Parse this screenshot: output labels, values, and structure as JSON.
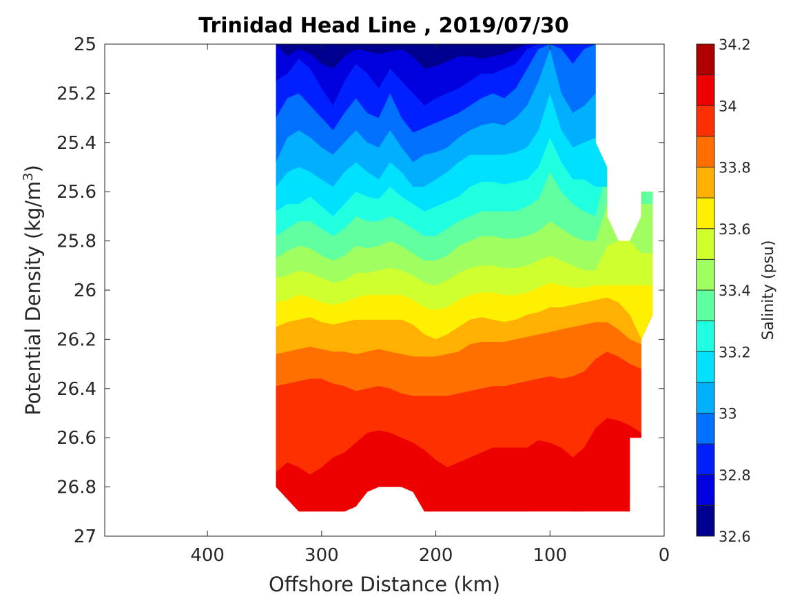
{
  "chart_data": {
    "type": "filled-contour",
    "title": "Trinidad Head Line , 2019/07/30",
    "xlabel": "Offshore Distance (km)",
    "ylabel_main": "Potential Density (kg/m",
    "ylabel_sup": "3",
    "ylabel_close": ")",
    "colorbar_label": "Salinity (psu)",
    "xlim": [
      490,
      0
    ],
    "ylim": [
      27,
      25
    ],
    "x_reversed": true,
    "y_reversed": true,
    "x_ticks": [
      400,
      300,
      200,
      100,
      0
    ],
    "x_tick_labels": [
      "400",
      "300",
      "200",
      "100",
      "0"
    ],
    "y_ticks": [
      25,
      25.2,
      25.4,
      25.6,
      25.8,
      26,
      26.2,
      26.4,
      26.6,
      26.8,
      27
    ],
    "y_tick_labels": [
      "25",
      "25.2",
      "25.4",
      "25.6",
      "25.8",
      "26",
      "26.2",
      "26.4",
      "26.6",
      "26.8",
      "27"
    ],
    "colorbar": {
      "range": [
        32.6,
        34.2
      ],
      "levels": [
        32.6,
        32.7,
        32.8,
        32.9,
        33.0,
        33.1,
        33.2,
        33.3,
        33.4,
        33.5,
        33.6,
        33.7,
        33.8,
        33.9,
        34.0,
        34.1,
        34.2
      ],
      "tick_values": [
        32.6,
        32.8,
        33.0,
        33.2,
        33.4,
        33.6,
        33.8,
        34.0,
        34.2
      ],
      "tick_labels": [
        "32.6",
        "32.8",
        "33",
        "33.2",
        "33.4",
        "33.6",
        "33.8",
        "34",
        "34.2"
      ],
      "colors": [
        "#00008f",
        "#0000df",
        "#0020ff",
        "#0070ff",
        "#00b0ff",
        "#00e0ff",
        "#20ffdf",
        "#60ff9f",
        "#9fff60",
        "#d0ff2f",
        "#ffef00",
        "#ffb000",
        "#ff7000",
        "#ff3000",
        "#ef0000",
        "#af0000"
      ]
    },
    "station_x_km": [
      340,
      330,
      320,
      310,
      300,
      290,
      280,
      270,
      260,
      250,
      240,
      230,
      220,
      210,
      200,
      190,
      180,
      170,
      160,
      150,
      140,
      130,
      120,
      110,
      100,
      90,
      80,
      70,
      60,
      50,
      40,
      30,
      20
    ],
    "bottom_density": [
      26.8,
      26.85,
      26.9,
      26.9,
      26.9,
      26.9,
      26.9,
      26.88,
      26.82,
      26.8,
      26.8,
      26.8,
      26.82,
      26.9,
      26.9,
      26.9,
      26.9,
      26.9,
      26.9,
      26.9,
      26.9,
      26.9,
      26.9,
      26.9,
      26.9,
      26.9,
      26.9,
      26.9,
      26.9,
      26.9,
      26.9,
      26.7,
      26.6
    ],
    "isohalines": [
      {
        "salinity": 32.7,
        "density": [
          25.0,
          25.05,
          25.02,
          25.04,
          25.08,
          25.1,
          25.05,
          25.02,
          25.03,
          25.04,
          25.03,
          25.02,
          25.05,
          25.1,
          25.09,
          25.07,
          25.05,
          25.05,
          25.06,
          25.05,
          25.04,
          25.02,
          25.0,
          25.0,
          25.0,
          25.0,
          25.0,
          25.0,
          25.0,
          null,
          null,
          null,
          null
        ]
      },
      {
        "salinity": 32.8,
        "density": [
          25.15,
          25.12,
          25.06,
          25.1,
          25.18,
          25.25,
          25.15,
          25.08,
          25.12,
          25.18,
          25.1,
          25.15,
          25.2,
          25.25,
          25.22,
          25.2,
          25.18,
          25.15,
          25.12,
          25.12,
          25.1,
          25.08,
          25.02,
          25.0,
          25.0,
          25.0,
          25.0,
          25.0,
          25.0,
          null,
          null,
          null,
          null
        ]
      },
      {
        "salinity": 32.9,
        "density": [
          25.3,
          25.22,
          25.2,
          25.25,
          25.3,
          25.35,
          25.28,
          25.22,
          25.28,
          25.3,
          25.2,
          25.3,
          25.36,
          25.34,
          25.32,
          25.3,
          25.28,
          25.25,
          25.22,
          25.2,
          25.22,
          25.18,
          25.1,
          25.02,
          25.0,
          25.02,
          25.08,
          25.02,
          25.0,
          null,
          null,
          null,
          null
        ]
      },
      {
        "salinity": 33.0,
        "density": [
          25.48,
          25.38,
          25.35,
          25.38,
          25.42,
          25.45,
          25.4,
          25.35,
          25.4,
          25.42,
          25.35,
          25.42,
          25.48,
          25.45,
          25.44,
          25.42,
          25.38,
          25.35,
          25.33,
          25.32,
          25.33,
          25.3,
          25.25,
          25.15,
          25.02,
          25.2,
          25.28,
          25.25,
          25.2,
          null,
          null,
          null,
          null
        ]
      },
      {
        "salinity": 33.1,
        "density": [
          25.58,
          25.52,
          25.5,
          25.52,
          25.55,
          25.58,
          25.52,
          25.48,
          25.52,
          25.55,
          25.48,
          25.52,
          25.58,
          25.58,
          25.55,
          25.52,
          25.48,
          25.45,
          25.45,
          25.45,
          25.45,
          25.44,
          25.42,
          25.35,
          25.2,
          25.35,
          25.42,
          25.4,
          25.38,
          null,
          null,
          null,
          null
        ]
      },
      {
        "salinity": 33.2,
        "density": [
          25.68,
          25.65,
          25.65,
          25.62,
          25.66,
          25.7,
          25.65,
          25.6,
          25.62,
          25.63,
          25.58,
          25.62,
          25.65,
          25.68,
          25.66,
          25.64,
          25.62,
          25.58,
          25.56,
          25.56,
          25.57,
          25.56,
          25.55,
          25.5,
          25.38,
          25.48,
          25.55,
          25.55,
          25.58,
          null,
          null,
          null,
          null
        ]
      },
      {
        "salinity": 33.3,
        "density": [
          25.78,
          25.75,
          25.72,
          25.72,
          25.75,
          25.78,
          25.75,
          25.7,
          25.72,
          25.72,
          25.7,
          25.72,
          25.75,
          25.78,
          25.78,
          25.75,
          25.72,
          25.7,
          25.68,
          25.68,
          25.68,
          25.68,
          25.66,
          25.63,
          25.52,
          25.6,
          25.65,
          25.68,
          25.7,
          25.5,
          null,
          null,
          null
        ]
      },
      {
        "salinity": 33.4,
        "density": [
          25.87,
          25.84,
          25.82,
          25.83,
          25.86,
          25.88,
          25.86,
          25.82,
          25.83,
          25.82,
          25.8,
          25.82,
          25.85,
          25.88,
          25.88,
          25.86,
          25.82,
          25.8,
          25.78,
          25.78,
          25.79,
          25.79,
          25.78,
          25.76,
          25.72,
          25.75,
          25.78,
          25.8,
          25.8,
          25.65,
          null,
          null,
          null
        ]
      },
      {
        "salinity": 33.5,
        "density": [
          25.95,
          25.94,
          25.92,
          25.93,
          25.95,
          25.97,
          25.96,
          25.93,
          25.93,
          25.92,
          25.91,
          25.92,
          25.94,
          25.97,
          25.98,
          25.96,
          25.93,
          25.91,
          25.9,
          25.9,
          25.91,
          25.91,
          25.9,
          25.88,
          25.86,
          25.88,
          25.9,
          25.92,
          25.92,
          25.82,
          25.8,
          25.8,
          25.85
        ]
      },
      {
        "salinity": 33.6,
        "density": [
          26.05,
          26.04,
          26.02,
          26.03,
          26.05,
          26.06,
          26.05,
          26.03,
          26.02,
          26.02,
          26.02,
          26.02,
          26.04,
          26.07,
          26.08,
          26.07,
          26.04,
          26.02,
          26.01,
          26.01,
          26.02,
          26.02,
          26.01,
          25.99,
          25.97,
          25.98,
          25.99,
          25.99,
          25.98,
          null,
          null,
          null,
          null
        ]
      },
      {
        "salinity": 33.7,
        "density": [
          26.15,
          26.13,
          26.12,
          26.11,
          26.13,
          26.14,
          26.13,
          26.12,
          26.12,
          26.12,
          26.12,
          26.12,
          26.14,
          26.18,
          26.2,
          26.18,
          26.15,
          26.12,
          26.11,
          26.12,
          26.13,
          26.12,
          26.1,
          26.09,
          26.07,
          26.07,
          26.06,
          26.05,
          26.04,
          26.03,
          26.05,
          26.1,
          26.2
        ]
      },
      {
        "salinity": 33.8,
        "density": [
          26.26,
          26.25,
          26.24,
          26.23,
          26.24,
          26.25,
          26.25,
          26.26,
          26.25,
          26.24,
          26.25,
          26.26,
          26.27,
          26.27,
          26.27,
          26.26,
          26.25,
          26.22,
          26.21,
          26.21,
          26.21,
          26.2,
          26.19,
          26.18,
          26.17,
          26.16,
          26.15,
          26.14,
          26.13,
          26.13,
          26.16,
          26.2,
          26.22
        ]
      },
      {
        "salinity": 33.9,
        "density": [
          26.39,
          26.38,
          26.37,
          26.36,
          26.36,
          26.38,
          26.39,
          26.41,
          26.4,
          26.39,
          26.4,
          26.42,
          26.43,
          26.43,
          26.43,
          26.43,
          26.42,
          26.41,
          26.4,
          26.39,
          26.39,
          26.38,
          26.37,
          26.36,
          26.35,
          26.36,
          26.35,
          26.33,
          26.28,
          26.25,
          26.27,
          26.3,
          26.32
        ]
      },
      {
        "salinity": 34.0,
        "density": [
          26.74,
          26.7,
          26.72,
          26.75,
          26.72,
          26.68,
          26.66,
          26.62,
          26.58,
          26.57,
          26.58,
          26.6,
          26.62,
          26.65,
          26.69,
          26.72,
          26.7,
          26.68,
          26.66,
          26.64,
          26.64,
          26.64,
          26.64,
          26.61,
          26.62,
          26.64,
          26.68,
          26.64,
          26.56,
          26.52,
          26.53,
          26.55,
          26.58
        ]
      },
      {
        "salinity": 34.1,
        "density": [
          26.9,
          26.9,
          26.9,
          26.9,
          26.9,
          26.9,
          26.9,
          26.9,
          26.9,
          26.9,
          26.9,
          26.9,
          26.9,
          26.9,
          26.9,
          26.9,
          26.9,
          26.9,
          26.9,
          26.9,
          26.9,
          26.9,
          26.9,
          26.89,
          26.88,
          26.89,
          26.9,
          26.9,
          26.88,
          26.86,
          26.86,
          26.85,
          26.9
        ]
      }
    ],
    "nearshore_patch": [
      [
        60,
        25.4
      ],
      [
        50,
        25.5
      ],
      [
        50,
        25.7
      ],
      [
        40,
        25.8
      ],
      [
        30,
        25.8
      ],
      [
        20,
        25.7
      ],
      [
        20,
        25.6
      ],
      [
        10,
        25.6
      ],
      [
        10,
        26.1
      ],
      [
        20,
        26.2
      ],
      [
        20,
        26.6
      ],
      [
        30,
        26.6
      ],
      [
        30,
        26.9
      ],
      [
        60,
        26.9
      ]
    ]
  }
}
